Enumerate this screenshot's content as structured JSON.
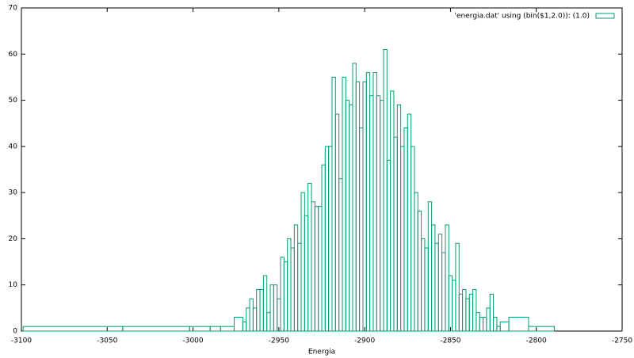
{
  "chart_data": {
    "type": "boxes",
    "legend_label": "'energia.dat' using (bin($1,2.0)): (1.0)",
    "legend_position": "top-right",
    "xlabel": "Energia",
    "color": "#009e73",
    "x": [
      -3070,
      -3012,
      -2992,
      -2988,
      -2980,
      -2972,
      -2970,
      -2968,
      -2966,
      -2964,
      -2962,
      -2960,
      -2958,
      -2956,
      -2954,
      -2952,
      -2950,
      -2948,
      -2946,
      -2944,
      -2942,
      -2940,
      -2938,
      -2936,
      -2934,
      -2932,
      -2930,
      -2928,
      -2926,
      -2924,
      -2922,
      -2920,
      -2918,
      -2916,
      -2914,
      -2912,
      -2910,
      -2908,
      -2906,
      -2904,
      -2902,
      -2900,
      -2898,
      -2896,
      -2894,
      -2892,
      -2890,
      -2888,
      -2886,
      -2884,
      -2882,
      -2880,
      -2878,
      -2876,
      -2874,
      -2872,
      -2870,
      -2868,
      -2866,
      -2864,
      -2862,
      -2860,
      -2858,
      -2856,
      -2854,
      -2852,
      -2850,
      -2848,
      -2846,
      -2844,
      -2842,
      -2840,
      -2838,
      -2836,
      -2834,
      -2832,
      -2830,
      -2828,
      -2826,
      -2824,
      -2822,
      -2820,
      -2812,
      -2797
    ],
    "values": [
      1,
      1,
      1,
      1,
      1,
      3,
      2,
      5,
      7,
      5,
      9,
      9,
      12,
      4,
      10,
      10,
      7,
      16,
      15,
      20,
      18,
      23,
      19,
      30,
      25,
      32,
      28,
      27,
      27,
      36,
      40,
      40,
      55,
      47,
      33,
      55,
      50,
      49,
      58,
      54,
      44,
      54,
      56,
      51,
      56,
      51,
      50,
      61,
      37,
      52,
      42,
      49,
      40,
      44,
      47,
      40,
      30,
      26,
      20,
      18,
      28,
      23,
      19,
      21,
      17,
      23,
      12,
      11,
      19,
      8,
      9,
      7,
      8,
      9,
      4,
      3,
      3,
      5,
      8,
      3,
      1,
      2,
      3,
      1
    ],
    "xlim": [
      -3100,
      -2750
    ],
    "xticks": [
      -3100,
      -3050,
      -3000,
      -2950,
      -2900,
      -2850,
      -2800,
      -2750
    ],
    "ylim": [
      0,
      70
    ],
    "yticks": [
      0,
      10,
      20,
      30,
      40,
      50,
      60,
      70
    ]
  }
}
